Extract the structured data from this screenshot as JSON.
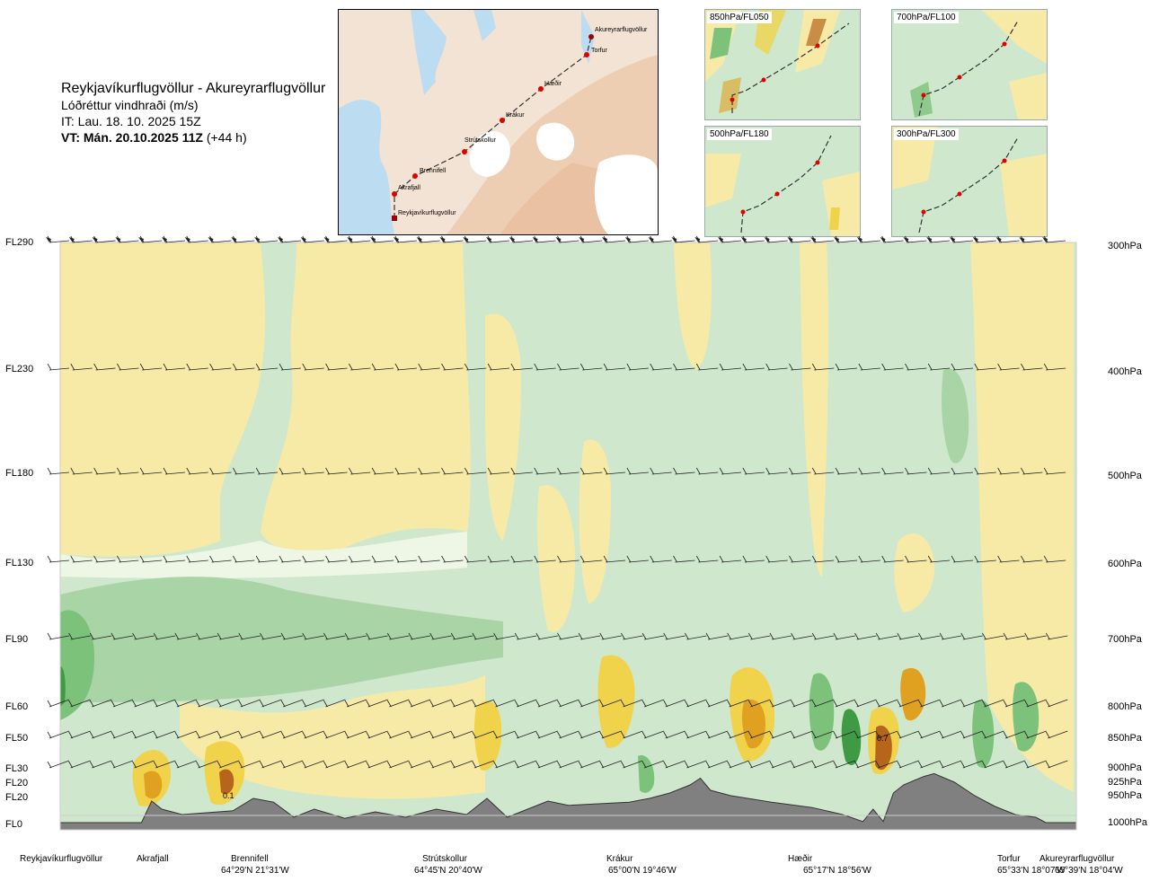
{
  "header": {
    "route": "Reykjavíkurflugvöllur - Akureyrarflugvöllur",
    "parameter": "Lóðréttur vindhraði (m/s)",
    "init_time": "IT: Lau. 18. 10. 2025 15Z",
    "valid_prefix": "VT: Mán. 20.10.2025 11Z",
    "valid_suffix": "(+44 h)"
  },
  "route_map": {
    "waypoints": [
      "Akureyrarflugvöllur",
      "Torfur",
      "Hæðir",
      "Krákur",
      "Strútskollur",
      "Brennifell",
      "Akrafjall",
      "Reykjavíkurflugvöllur"
    ],
    "colors": {
      "land": "#f2e3d4",
      "highland": "#ecc4a4",
      "sea": "#bcdcf2",
      "glacier": "#ffffff",
      "route": "#333333",
      "point": "#e00000"
    }
  },
  "mini_maps": [
    {
      "label": "850hPa/FL050"
    },
    {
      "label": "700hPa/FL100"
    },
    {
      "label": "500hPa/FL180"
    },
    {
      "label": "300hPa/FL300"
    }
  ],
  "levels": {
    "flight_levels": [
      "FL290",
      "FL230",
      "FL180",
      "FL130",
      "FL90",
      "FL60",
      "FL50",
      "FL30",
      "FL20",
      "FL20",
      "FL0"
    ],
    "pressure_levels": [
      "300hPa",
      "400hPa",
      "500hPa",
      "600hPa",
      "700hPa",
      "800hPa",
      "850hPa",
      "900hPa",
      "925hPa",
      "950hPa",
      "1000hPa"
    ]
  },
  "locations": [
    {
      "name": "Reykjavíkurflugvöllur",
      "coord": ""
    },
    {
      "name": "Akrafjall",
      "coord": ""
    },
    {
      "name": "Brennifell",
      "coord": "64°29'N 21°31'W"
    },
    {
      "name": "Strútskollur",
      "coord": "64°45'N 20°40'W"
    },
    {
      "name": "Krákur",
      "coord": "65°00'N 19°46'W"
    },
    {
      "name": "Hæðir",
      "coord": "65°17'N 18°56'W"
    },
    {
      "name": "Torfur",
      "coord": "65°33'N 18°07'W"
    },
    {
      "name": "Akureyrarflugvöllur",
      "coord": "65°39'N 18°04'W"
    }
  ],
  "chart_data": {
    "type": "heatmap",
    "title": "Lóðréttur vindhraði (m/s)",
    "x_categories": [
      "Reykjavíkurflugvöllur",
      "Akrafjall",
      "Brennifell",
      "Strútskollur",
      "Krákur",
      "Hæðir",
      "Torfur",
      "Akureyrarflugvöllur"
    ],
    "y_left_ticks": [
      "FL290",
      "FL230",
      "FL180",
      "FL130",
      "FL90",
      "FL60",
      "FL50",
      "FL30",
      "FL20",
      "FL20",
      "FL0"
    ],
    "y_right_ticks_hPa": [
      300,
      400,
      500,
      600,
      700,
      800,
      850,
      900,
      925,
      950,
      1000
    ],
    "ylim_hPa": [
      1000,
      300
    ],
    "contour_labels": [
      "0.1",
      "0.7"
    ],
    "colors": {
      "strong_down": "#3f9a44",
      "down": "#7cc27a",
      "weak_down": "#a9d4a5",
      "very_weak_down": "#cfe8cd",
      "near_zero": "#eef7e6",
      "weak_up": "#f6eaa6",
      "up": "#f0d34a",
      "strong_up": "#e0a020",
      "very_strong_up": "#b8651c",
      "terrain": "#808080"
    },
    "terrain_profile_hPa": [
      [
        0,
        1000
      ],
      [
        0.08,
        1000
      ],
      [
        0.09,
        960
      ],
      [
        0.1,
        975
      ],
      [
        0.12,
        985
      ],
      [
        0.17,
        978
      ],
      [
        0.19,
        955
      ],
      [
        0.21,
        962
      ],
      [
        0.23,
        990
      ],
      [
        0.25,
        975
      ],
      [
        0.28,
        992
      ],
      [
        0.31,
        980
      ],
      [
        0.34,
        990
      ],
      [
        0.37,
        975
      ],
      [
        0.4,
        985
      ],
      [
        0.42,
        955
      ],
      [
        0.44,
        990
      ],
      [
        0.46,
        975
      ],
      [
        0.48,
        960
      ],
      [
        0.5,
        968
      ],
      [
        0.53,
        965
      ],
      [
        0.56,
        962
      ],
      [
        0.58,
        955
      ],
      [
        0.6,
        945
      ],
      [
        0.62,
        930
      ],
      [
        0.63,
        918
      ],
      [
        0.64,
        940
      ],
      [
        0.66,
        950
      ],
      [
        0.7,
        962
      ],
      [
        0.74,
        972
      ],
      [
        0.77,
        985
      ],
      [
        0.79,
        998
      ],
      [
        0.8,
        975
      ],
      [
        0.81,
        998
      ],
      [
        0.82,
        945
      ],
      [
        0.83,
        930
      ],
      [
        0.85,
        915
      ],
      [
        0.86,
        910
      ],
      [
        0.88,
        925
      ],
      [
        0.9,
        950
      ],
      [
        0.92,
        970
      ],
      [
        0.94,
        985
      ],
      [
        0.96,
        990
      ],
      [
        0.97,
        1000
      ],
      [
        0.99,
        1000
      ],
      [
        1,
        1000
      ]
    ]
  }
}
